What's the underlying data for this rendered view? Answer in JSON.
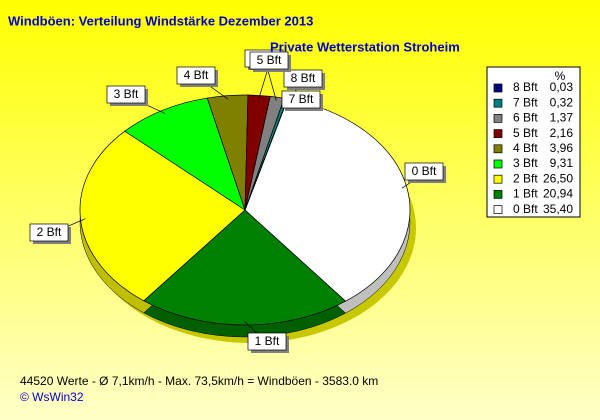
{
  "chart_data": {
    "type": "pie",
    "title": "Windböen: Verteilung Windstärke  Dezember 2013",
    "subtitle": "Private Wetterstation Stroheim",
    "legend_header": "%",
    "categories": [
      "8 Bft",
      "7 Bft",
      "6 Bft",
      "5 Bft",
      "4 Bft",
      "3 Bft",
      "2 Bft",
      "1 Bft",
      "0 Bft"
    ],
    "values": [
      0.03,
      0.32,
      1.37,
      2.16,
      3.96,
      9.31,
      26.5,
      20.94,
      35.4
    ],
    "value_labels": [
      "0,03",
      "0,32",
      "1,37",
      "2,16",
      "3,96",
      "9,31",
      "26,50",
      "20,94",
      "35,40"
    ],
    "colors": [
      "#000080",
      "#008080",
      "#808080",
      "#800000",
      "#808000",
      "#00ff00",
      "#ffff00",
      "#008000",
      "#ffffff"
    ],
    "footer": "44520 Werte   -   Ø 7,1km/h   -   Max. 73,5km/h = Windböen   -   3583.0 km",
    "credit": "© WsWin32"
  }
}
